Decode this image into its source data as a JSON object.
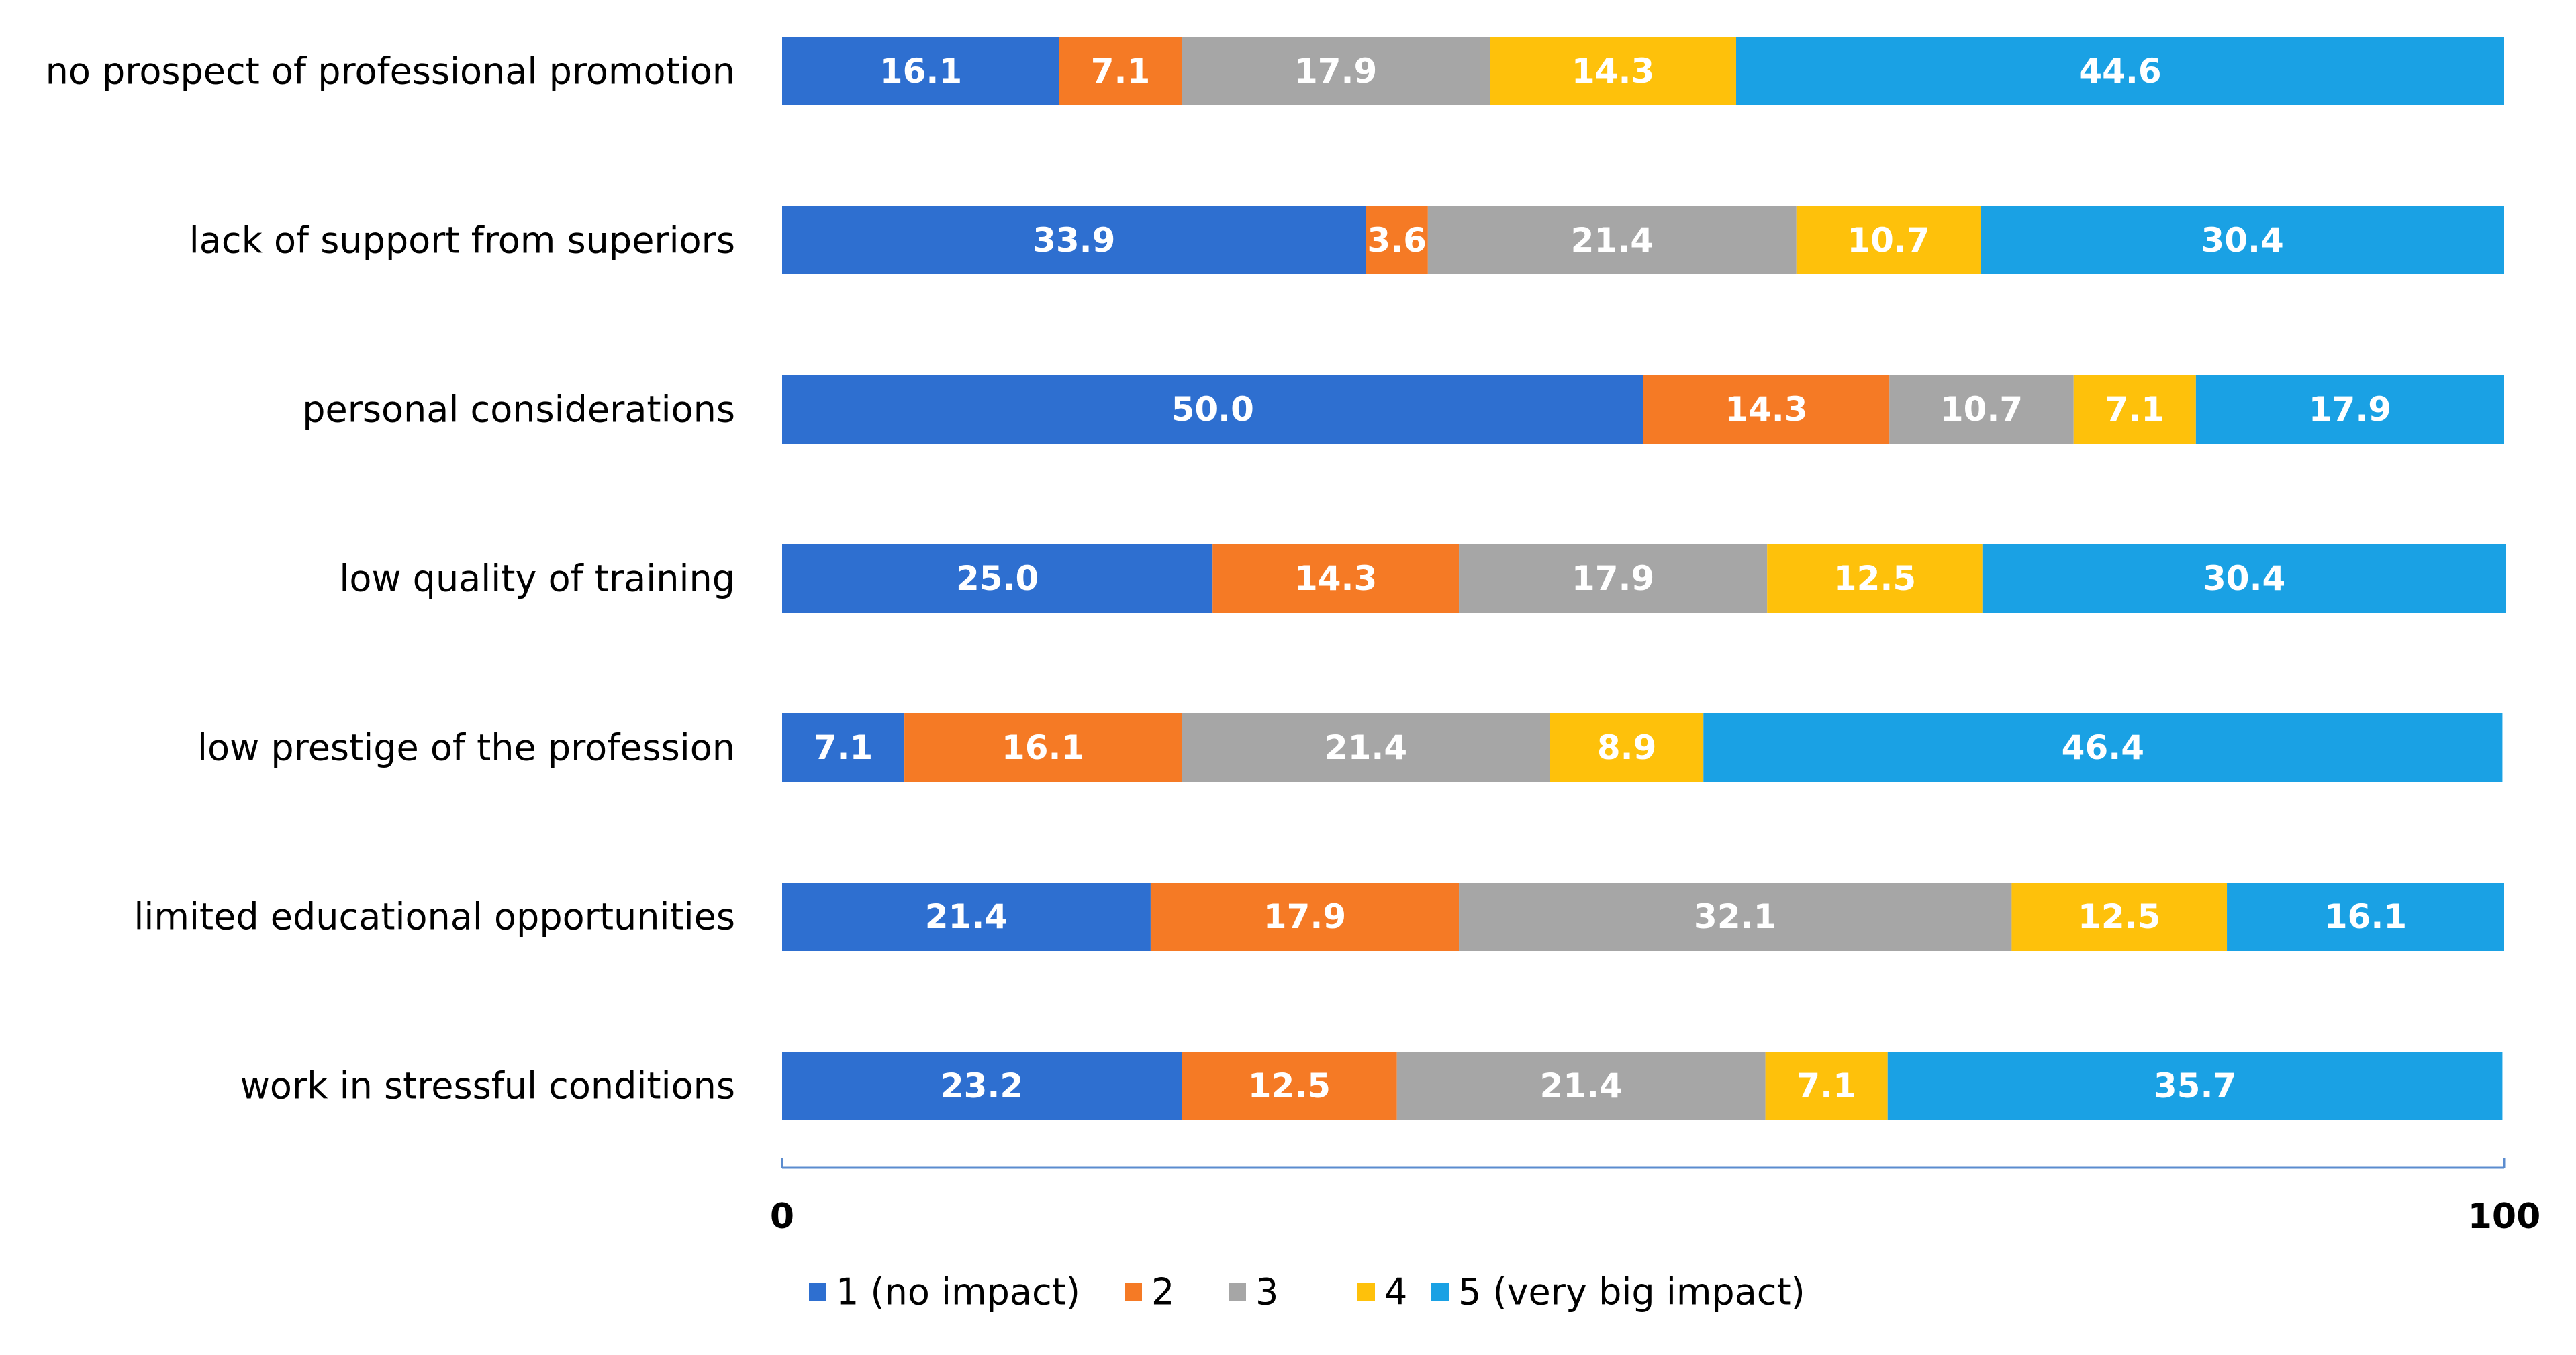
{
  "chart_data": {
    "type": "bar",
    "orientation": "horizontal",
    "stacked": true,
    "title": "",
    "xlabel": "",
    "ylabel": "",
    "xlim": [
      0,
      100
    ],
    "x_ticks": [
      "0",
      "100"
    ],
    "grid": false,
    "legend_position": "bottom",
    "categories": [
      "no prospect of professional promotion",
      "lack of support from superiors",
      "personal considerations",
      "low quality of training",
      "low prestige of the profession",
      "limited educational opportunities",
      "work in stressful conditions"
    ],
    "series": [
      {
        "name": "1 (no impact)",
        "color": "#2e6fd0",
        "values": [
          16.1,
          33.9,
          50.0,
          25.0,
          7.1,
          21.4,
          23.2
        ],
        "labels": [
          "16.1",
          "33.9",
          "50.0",
          "25.0",
          "7.1",
          "21.4",
          "23.2"
        ]
      },
      {
        "name": "2",
        "color": "#f57a25",
        "values": [
          7.1,
          3.6,
          14.3,
          14.3,
          16.1,
          17.9,
          12.5
        ],
        "labels": [
          "7.1",
          "3.6",
          "14.3",
          "14.3",
          "16.1",
          "17.9",
          "12.5"
        ]
      },
      {
        "name": "3",
        "color": "#a6a6a6",
        "values": [
          17.9,
          21.4,
          10.7,
          17.9,
          21.4,
          32.1,
          21.4
        ],
        "labels": [
          "17.9",
          "21.4",
          "10.7",
          "17.9",
          "21.4",
          "32.1",
          "21.4"
        ]
      },
      {
        "name": "4",
        "color": "#fec10b",
        "values": [
          14.3,
          10.7,
          7.1,
          12.5,
          8.9,
          12.5,
          7.1
        ],
        "labels": [
          "14.3",
          "10.7",
          "7.1",
          "12.5",
          "8.9",
          "12.5",
          "7.1"
        ]
      },
      {
        "name": "5 (very big impact)",
        "color": "#1aa1e4",
        "values": [
          44.6,
          30.4,
          17.9,
          30.4,
          46.4,
          16.1,
          35.7
        ],
        "labels": [
          "44.6",
          "30.4",
          "17.9",
          "30.4",
          "46.4",
          "16.1",
          "35.7"
        ]
      }
    ]
  }
}
